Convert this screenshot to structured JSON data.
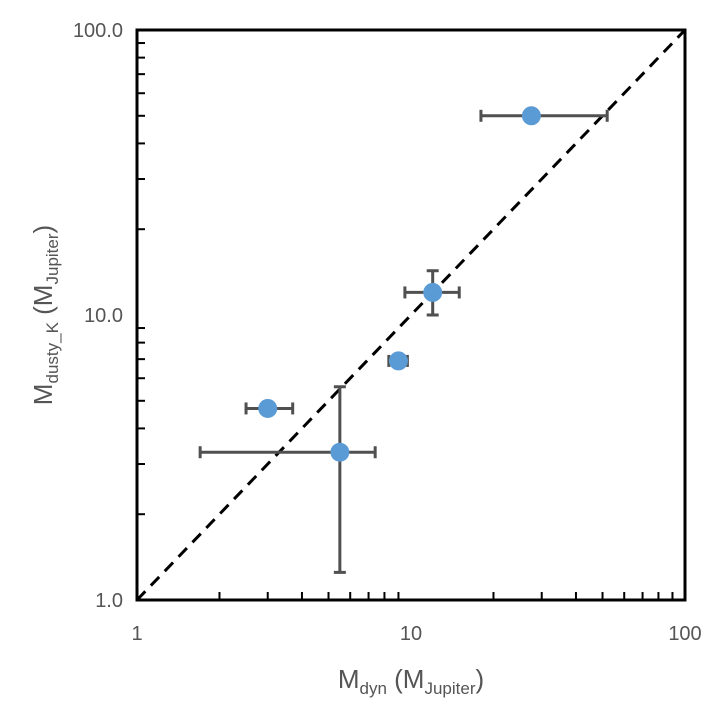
{
  "chart_data": {
    "type": "scatter",
    "title": "",
    "x_axis": {
      "scale": "log",
      "range": [
        1,
        100
      ],
      "tick_labels": [
        "1",
        "10",
        "100"
      ],
      "label_main": "M",
      "label_sub": "dyn",
      "label_paren_main": "M",
      "label_paren_sub": "Jupiter"
    },
    "y_axis": {
      "scale": "log",
      "range": [
        1.0,
        100.0
      ],
      "tick_labels": [
        "1.0",
        "10.0",
        "100.0"
      ],
      "label_main": "M",
      "label_sub": "dusty_K",
      "label_paren_main": "M",
      "label_paren_sub": "Jupiter"
    },
    "grid": false,
    "legend": "none",
    "reference_line": {
      "style": "dashed",
      "color": "#000000",
      "from": [
        1,
        1
      ],
      "to": [
        100,
        100
      ]
    },
    "points": [
      {
        "x": 3.0,
        "y": 4.7,
        "x_err": [
          2.5,
          3.7
        ],
        "y_err": null
      },
      {
        "x": 5.5,
        "y": 3.3,
        "x_err": [
          1.7,
          7.4
        ],
        "y_err": [
          1.25,
          5.6
        ]
      },
      {
        "x": 9.0,
        "y": 6.9,
        "x_err": [
          8.3,
          9.7
        ],
        "y_err": null
      },
      {
        "x": 12.0,
        "y": 12.0,
        "x_err": [
          9.5,
          15.0
        ],
        "y_err": [
          10.0,
          14.3
        ]
      },
      {
        "x": 27.5,
        "y": 50.0,
        "x_err": [
          18.0,
          52.0
        ],
        "y_err": null
      }
    ],
    "marker_color": "#5b9bd5",
    "error_bar_color": "#505050"
  }
}
